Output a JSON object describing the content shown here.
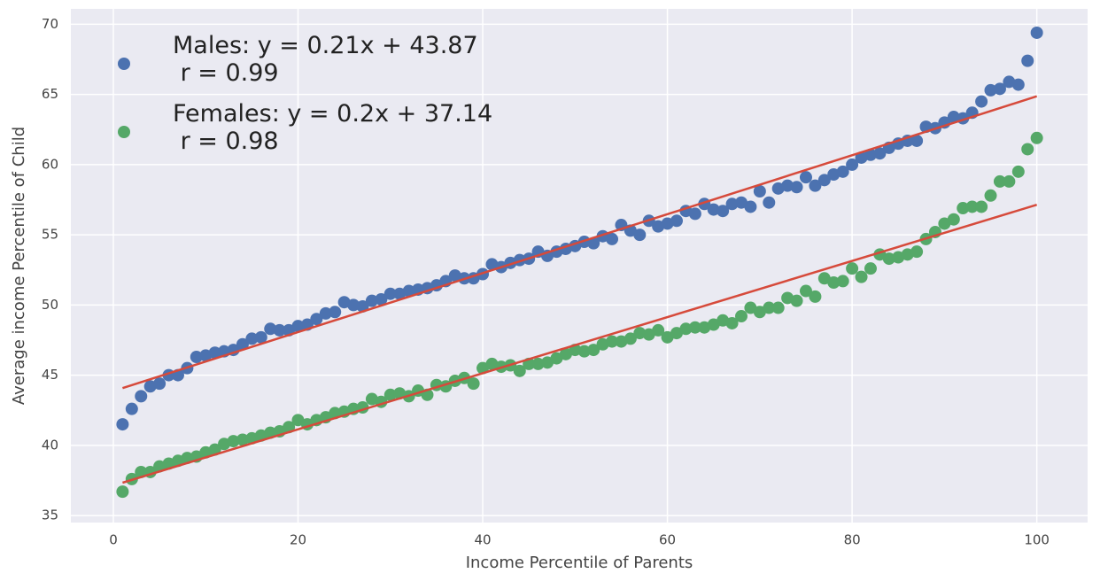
{
  "chart_data": {
    "type": "scatter",
    "x_label": "Income Percentile of Parents",
    "y_label": "Average income Percentile of Child",
    "x": [
      1,
      2,
      3,
      4,
      5,
      6,
      7,
      8,
      9,
      10,
      11,
      12,
      13,
      14,
      15,
      16,
      17,
      18,
      19,
      20,
      21,
      22,
      23,
      24,
      25,
      26,
      27,
      28,
      29,
      30,
      31,
      32,
      33,
      34,
      35,
      36,
      37,
      38,
      39,
      40,
      41,
      42,
      43,
      44,
      45,
      46,
      47,
      48,
      49,
      50,
      51,
      52,
      53,
      54,
      55,
      56,
      57,
      58,
      59,
      60,
      61,
      62,
      63,
      64,
      65,
      66,
      67,
      68,
      69,
      70,
      71,
      72,
      73,
      74,
      75,
      76,
      77,
      78,
      79,
      80,
      81,
      82,
      83,
      84,
      85,
      86,
      87,
      88,
      89,
      90,
      91,
      92,
      93,
      94,
      95,
      96,
      97,
      98,
      99,
      100
    ],
    "series": [
      {
        "name": "Males: y = 0.21x + 43.87\n r = 0.99",
        "color": "#4c72b0",
        "values": [
          41.5,
          42.6,
          43.5,
          44.2,
          44.4,
          45.0,
          45.0,
          45.5,
          46.3,
          46.4,
          46.6,
          46.7,
          46.8,
          47.2,
          47.6,
          47.7,
          48.3,
          48.2,
          48.2,
          48.5,
          48.6,
          49.0,
          49.4,
          49.5,
          50.2,
          50.0,
          49.9,
          50.3,
          50.4,
          50.8,
          50.8,
          51.0,
          51.1,
          51.2,
          51.4,
          51.7,
          52.1,
          51.9,
          51.9,
          52.2,
          52.9,
          52.7,
          53.0,
          53.2,
          53.3,
          53.8,
          53.5,
          53.8,
          54.0,
          54.2,
          54.5,
          54.4,
          54.9,
          54.7,
          55.7,
          55.3,
          55.0,
          56.0,
          55.6,
          55.8,
          56.0,
          56.7,
          56.5,
          57.2,
          56.8,
          56.7,
          57.2,
          57.3,
          57.0,
          58.1,
          57.3,
          58.3,
          58.5,
          58.4,
          59.1,
          58.5,
          58.9,
          59.3,
          59.5,
          60.0,
          60.5,
          60.7,
          60.8,
          61.2,
          61.5,
          61.7,
          61.7,
          62.7,
          62.6,
          63.0,
          63.4,
          63.3,
          63.7,
          64.5,
          65.3,
          65.4,
          65.9,
          65.7,
          67.4,
          69.4
        ]
      },
      {
        "name": "Females: y = 0.2x + 37.14\n r = 0.98",
        "color": "#55a868",
        "values": [
          36.7,
          37.6,
          38.1,
          38.1,
          38.5,
          38.7,
          38.9,
          39.1,
          39.2,
          39.5,
          39.7,
          40.1,
          40.3,
          40.4,
          40.5,
          40.7,
          40.9,
          41.0,
          41.3,
          41.8,
          41.5,
          41.8,
          42.0,
          42.3,
          42.4,
          42.6,
          42.7,
          43.3,
          43.1,
          43.6,
          43.7,
          43.5,
          43.9,
          43.6,
          44.3,
          44.2,
          44.6,
          44.8,
          44.4,
          45.5,
          45.8,
          45.6,
          45.7,
          45.3,
          45.8,
          45.8,
          45.9,
          46.2,
          46.5,
          46.8,
          46.7,
          46.8,
          47.2,
          47.4,
          47.4,
          47.6,
          48.0,
          47.9,
          48.2,
          47.7,
          48.0,
          48.3,
          48.4,
          48.4,
          48.6,
          48.9,
          48.7,
          49.2,
          49.8,
          49.5,
          49.8,
          49.8,
          50.5,
          50.3,
          51.0,
          50.6,
          51.9,
          51.6,
          51.7,
          52.6,
          52.0,
          52.6,
          53.6,
          53.3,
          53.4,
          53.6,
          53.8,
          54.7,
          55.2,
          55.8,
          56.1,
          56.9,
          57.0,
          57.0,
          57.8,
          58.8,
          58.8,
          59.5,
          61.1,
          61.9
        ]
      }
    ],
    "fit_lines": [
      {
        "color": "#d64a3b",
        "x": [
          1,
          100
        ],
        "values": [
          44.08,
          64.87
        ]
      },
      {
        "color": "#d64a3b",
        "x": [
          1,
          100
        ],
        "values": [
          37.34,
          57.14
        ]
      }
    ],
    "xlim": [
      -4.6,
      105.5
    ],
    "ylim": [
      34.5,
      71.1
    ],
    "xticks": [
      0,
      20,
      40,
      60,
      80,
      100
    ],
    "yticks": [
      35,
      40,
      45,
      50,
      55,
      60,
      65,
      70
    ],
    "grid": true,
    "legend": "upper left"
  }
}
